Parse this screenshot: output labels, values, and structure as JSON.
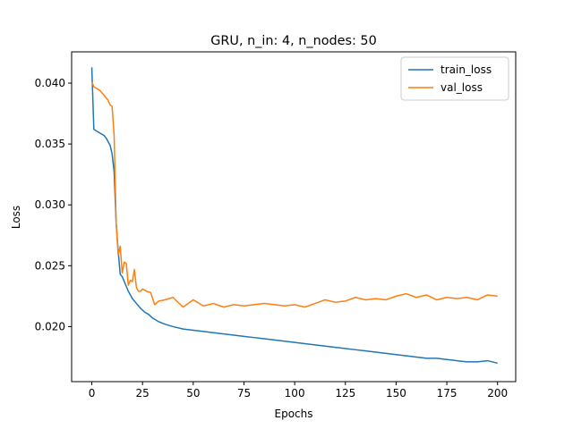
{
  "chart_data": {
    "type": "line",
    "title": "GRU, n_in: 4, n_nodes: 50",
    "xlabel": "Epochs",
    "ylabel": "Loss",
    "xlim": [
      -9.95,
      208.95
    ],
    "ylim": [
      0.01548,
      0.04257
    ],
    "xticks": [
      0,
      25,
      50,
      75,
      100,
      125,
      150,
      175,
      200
    ],
    "yticks": [
      0.02,
      0.025,
      0.03,
      0.035,
      0.04
    ],
    "ytick_labels": [
      "0.020",
      "0.025",
      "0.030",
      "0.035",
      "0.040"
    ],
    "grid": false,
    "legend_position": "top-right",
    "series": [
      {
        "name": "train_loss",
        "color": "#1f77b4",
        "x": [
          0,
          1,
          2,
          3,
          4,
          5,
          6,
          7,
          8,
          9,
          10,
          11,
          12,
          13,
          14,
          15,
          16,
          17,
          18,
          19,
          20,
          22,
          24,
          26,
          28,
          30,
          33,
          36,
          40,
          45,
          50,
          55,
          60,
          65,
          70,
          75,
          80,
          85,
          90,
          95,
          100,
          105,
          110,
          115,
          120,
          125,
          130,
          135,
          140,
          145,
          150,
          155,
          160,
          165,
          170,
          175,
          180,
          185,
          190,
          195,
          200
        ],
        "values": [
          0.0413,
          0.0362,
          0.0361,
          0.036,
          0.0359,
          0.0358,
          0.0357,
          0.0355,
          0.0352,
          0.0349,
          0.0342,
          0.0327,
          0.0285,
          0.0262,
          0.0243,
          0.0241,
          0.0237,
          0.0233,
          0.0229,
          0.0226,
          0.0223,
          0.0219,
          0.0215,
          0.0212,
          0.021,
          0.0207,
          0.0204,
          0.0202,
          0.02,
          0.0198,
          0.0197,
          0.0196,
          0.0195,
          0.0194,
          0.0193,
          0.0192,
          0.0191,
          0.019,
          0.0189,
          0.0188,
          0.0187,
          0.0186,
          0.0185,
          0.0184,
          0.0183,
          0.0182,
          0.0181,
          0.018,
          0.0179,
          0.0178,
          0.0177,
          0.0176,
          0.0175,
          0.0174,
          0.0174,
          0.0173,
          0.0172,
          0.0171,
          0.0171,
          0.0172,
          0.017
        ]
      },
      {
        "name": "val_loss",
        "color": "#ff7f0e",
        "x": [
          0,
          1,
          2,
          3,
          4,
          5,
          6,
          7,
          8,
          9,
          10,
          11,
          12,
          13,
          14,
          15,
          16,
          17,
          18,
          19,
          20,
          21,
          22,
          23,
          24,
          25,
          27,
          29,
          31,
          33,
          36,
          40,
          45,
          50,
          55,
          60,
          65,
          70,
          75,
          80,
          85,
          90,
          95,
          100,
          105,
          110,
          115,
          120,
          125,
          130,
          135,
          140,
          145,
          150,
          155,
          160,
          165,
          170,
          175,
          180,
          185,
          190,
          195,
          200
        ],
        "values": [
          0.0401,
          0.0397,
          0.0396,
          0.0395,
          0.0394,
          0.0392,
          0.039,
          0.0388,
          0.0386,
          0.0382,
          0.0381,
          0.0357,
          0.0285,
          0.0259,
          0.0266,
          0.0244,
          0.0253,
          0.0252,
          0.0234,
          0.0238,
          0.0237,
          0.0247,
          0.0232,
          0.0229,
          0.0229,
          0.0231,
          0.0229,
          0.0228,
          0.0218,
          0.0221,
          0.0222,
          0.0224,
          0.0216,
          0.0222,
          0.0217,
          0.0219,
          0.0216,
          0.0218,
          0.0217,
          0.0218,
          0.0219,
          0.0218,
          0.0217,
          0.0218,
          0.0216,
          0.0219,
          0.0222,
          0.022,
          0.0221,
          0.0224,
          0.0222,
          0.0223,
          0.0222,
          0.0225,
          0.0227,
          0.0224,
          0.0226,
          0.0222,
          0.0224,
          0.0223,
          0.0224,
          0.0222,
          0.0226,
          0.0225
        ]
      }
    ]
  }
}
